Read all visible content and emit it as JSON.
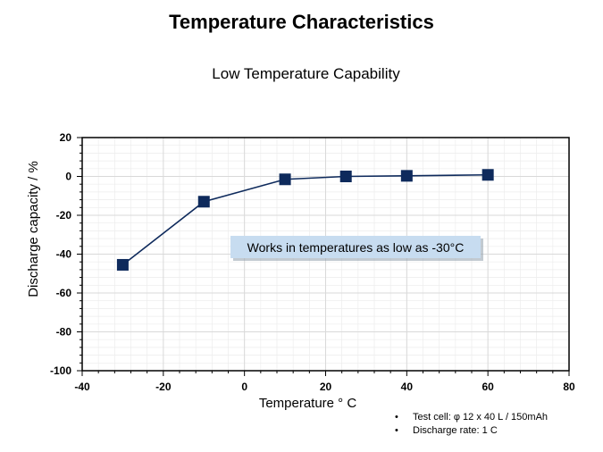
{
  "slide": {
    "title": "Temperature Characteristics",
    "subtitle": "Low Temperature Capability"
  },
  "chart_data": {
    "type": "line",
    "xlabel": "Temperature ° C",
    "ylabel": "Discharge capacity / %",
    "xlim": [
      -40,
      80
    ],
    "ylim": [
      -100,
      20
    ],
    "xticks": [
      -40,
      -20,
      0,
      20,
      40,
      60,
      80
    ],
    "yticks": [
      20,
      0,
      -20,
      -40,
      -60,
      -80,
      -100
    ],
    "grid": true,
    "x": [
      -30,
      -10,
      10,
      25,
      40,
      60
    ],
    "values": [
      -45.5,
      -13,
      -1.5,
      0,
      0.3,
      0.8
    ],
    "annotation": "Works in temperatures as low as -30°C",
    "colors": {
      "series": "#0e2a5c",
      "annotation_bg": "#c7dcf0",
      "grid": "#d9d9d9"
    }
  },
  "notes": [
    "Test cell: φ 12 x 40 L / 150mAh",
    "Discharge rate: 1 C"
  ]
}
